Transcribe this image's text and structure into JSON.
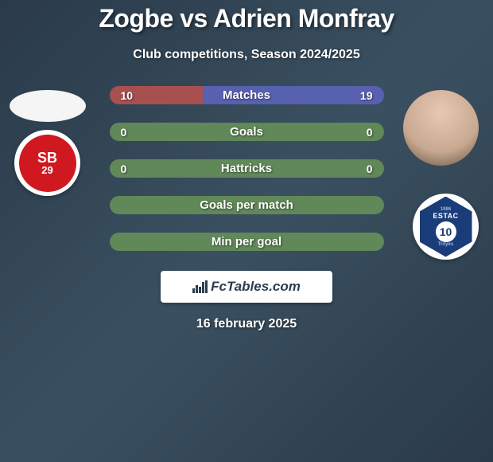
{
  "header": {
    "title": "Zogbe vs Adrien Monfray",
    "subtitle": "Club competitions, Season 2024/2025"
  },
  "player_left": {
    "club_badge_text": "SB",
    "club_badge_year": "29",
    "club_badge_bg": "#d01820"
  },
  "player_right": {
    "club_badge_text": "ESTAC",
    "club_badge_sub": "Troyes",
    "club_badge_year": "1986",
    "club_badge_num": "10",
    "club_badge_bg": "#1a3d7a"
  },
  "stats": [
    {
      "label": "Matches",
      "left_val": "10",
      "right_val": "19",
      "left_pct": 34,
      "right_pct": 66,
      "left_color": "#a85050",
      "right_color": "#5860b0"
    },
    {
      "label": "Goals",
      "left_val": "0",
      "right_val": "0",
      "left_pct": 50,
      "right_pct": 50,
      "left_color": "#608858",
      "right_color": "#608858"
    },
    {
      "label": "Hattricks",
      "left_val": "0",
      "right_val": "0",
      "left_pct": 50,
      "right_pct": 50,
      "left_color": "#608858",
      "right_color": "#608858"
    },
    {
      "label": "Goals per match",
      "left_val": "",
      "right_val": "",
      "left_pct": 50,
      "right_pct": 50,
      "left_color": "#608858",
      "right_color": "#608858"
    },
    {
      "label": "Min per goal",
      "left_val": "",
      "right_val": "",
      "left_pct": 50,
      "right_pct": 50,
      "left_color": "#608858",
      "right_color": "#608858"
    }
  ],
  "watermark": {
    "text": "FcTables.com"
  },
  "footer": {
    "date": "16 february 2025"
  },
  "styling": {
    "title_color": "#ffffff",
    "title_fontsize": 32,
    "subtitle_fontsize": 16,
    "stat_label_fontsize": 15,
    "pill_height": 23,
    "pill_radius": 13,
    "background_gradient": [
      "#2a3a4a",
      "#3a5060",
      "#2a3a4a"
    ]
  }
}
